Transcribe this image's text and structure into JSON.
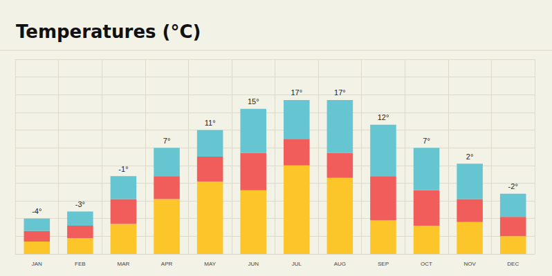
{
  "chart_data": {
    "type": "bar",
    "title": "Temperatures (°C)",
    "categories": [
      "JAN",
      "FEB",
      "MAR",
      "APR",
      "MAY",
      "JUN",
      "JUL",
      "AUG",
      "SEP",
      "OCT",
      "NOV",
      "DEC"
    ],
    "series": [
      {
        "color": "#fcc62a",
        "values": [
          0.7,
          0.9,
          1.7,
          3.1,
          4.1,
          3.6,
          5.0,
          4.3,
          1.9,
          1.6,
          1.8,
          1.0
        ]
      },
      {
        "color": "#f05d5b",
        "values": [
          0.6,
          0.7,
          1.4,
          1.3,
          1.4,
          2.1,
          1.5,
          1.4,
          2.5,
          2.0,
          1.3,
          1.1
        ]
      },
      {
        "color": "#65c6d1",
        "values": [
          0.7,
          0.8,
          1.3,
          1.6,
          1.5,
          2.5,
          2.2,
          3.0,
          2.9,
          2.4,
          2.0,
          1.3
        ]
      }
    ],
    "annotations": [
      "-4°",
      "-3°",
      "-1°",
      "7°",
      "11°",
      "15°",
      "17°",
      "17°",
      "12°",
      "7°",
      "2°",
      "-2°"
    ],
    "stacked": true,
    "ylim": [
      0,
      11
    ],
    "yticks": [
      0,
      1,
      2,
      3,
      4,
      5,
      6,
      7,
      8,
      9,
      10,
      11
    ],
    "grid": true,
    "tick_labels": "x"
  }
}
